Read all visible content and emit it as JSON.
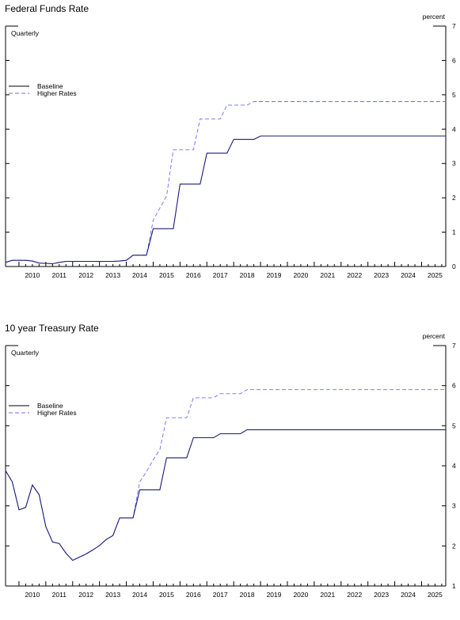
{
  "colors": {
    "baseline": "#000000",
    "higher_rates": "#6b6bff",
    "overlap": "#1a1a7a"
  },
  "chart_data": [
    {
      "type": "line",
      "title": "Federal Funds Rate",
      "frequency_label": "Quarterly",
      "ylabel": "percent",
      "ylim": [
        0,
        7
      ],
      "yticks": [
        0,
        1,
        2,
        3,
        4,
        5,
        6,
        7
      ],
      "xlim": [
        2009.5,
        2025.9
      ],
      "xtick_labels": [
        "2010",
        "2011",
        "2012",
        "2013",
        "2014",
        "2015",
        "2016",
        "2017",
        "2018",
        "2019",
        "2020",
        "2021",
        "2022",
        "2023",
        "2024",
        "2025"
      ],
      "legend": "top-left",
      "series": [
        {
          "name": "Baseline",
          "style": "solid",
          "x": [
            2009.5,
            2009.75,
            2010.0,
            2010.25,
            2010.5,
            2010.75,
            2011.0,
            2011.25,
            2011.5,
            2011.75,
            2012.0,
            2012.25,
            2012.5,
            2012.75,
            2013.0,
            2013.25,
            2013.5,
            2013.75,
            2014.0,
            2014.25,
            2014.5,
            2014.75,
            2015.0,
            2015.25,
            2015.5,
            2015.75,
            2016.0,
            2016.25,
            2016.5,
            2016.75,
            2017.0,
            2017.25,
            2017.5,
            2017.75,
            2018.0,
            2018.25,
            2018.5,
            2018.75,
            2019.0,
            2019.25,
            2025.9
          ],
          "values": [
            0.12,
            0.18,
            0.18,
            0.18,
            0.16,
            0.1,
            0.09,
            0.08,
            0.12,
            0.15,
            0.15,
            0.15,
            0.15,
            0.15,
            0.15,
            0.15,
            0.15,
            0.16,
            0.18,
            0.33,
            0.33,
            0.33,
            1.1,
            1.1,
            1.1,
            1.1,
            2.4,
            2.4,
            2.4,
            2.4,
            3.3,
            3.3,
            3.3,
            3.3,
            3.7,
            3.7,
            3.7,
            3.7,
            3.8,
            3.8,
            3.8
          ]
        },
        {
          "name": "Higher Rates",
          "style": "dashed",
          "x": [
            2009.5,
            2009.75,
            2010.0,
            2010.25,
            2010.5,
            2010.75,
            2011.0,
            2011.25,
            2011.5,
            2011.75,
            2012.0,
            2012.25,
            2012.5,
            2012.75,
            2013.0,
            2013.25,
            2013.5,
            2013.75,
            2014.0,
            2014.25,
            2014.5,
            2014.75,
            2015.0,
            2015.25,
            2015.5,
            2015.75,
            2016.0,
            2016.25,
            2016.5,
            2016.75,
            2017.0,
            2017.25,
            2017.5,
            2017.75,
            2018.0,
            2018.25,
            2018.5,
            2018.75,
            2019.0,
            2019.25,
            2025.9
          ],
          "values": [
            0.12,
            0.18,
            0.18,
            0.18,
            0.16,
            0.1,
            0.09,
            0.08,
            0.12,
            0.15,
            0.15,
            0.15,
            0.15,
            0.15,
            0.15,
            0.15,
            0.15,
            0.16,
            0.18,
            0.33,
            0.33,
            0.33,
            1.35,
            1.7,
            2.05,
            3.4,
            3.4,
            3.4,
            3.4,
            4.3,
            4.3,
            4.3,
            4.3,
            4.7,
            4.7,
            4.7,
            4.7,
            4.8,
            4.8,
            4.8,
            4.8
          ]
        }
      ]
    },
    {
      "type": "line",
      "title": "10 year Treasury Rate",
      "frequency_label": "Quarterly",
      "ylabel": "percent",
      "ylim": [
        1,
        7
      ],
      "yticks": [
        1,
        2,
        3,
        4,
        5,
        6,
        7
      ],
      "xlim": [
        2009.5,
        2025.9
      ],
      "xtick_labels": [
        "2010",
        "2011",
        "2012",
        "2013",
        "2014",
        "2015",
        "2016",
        "2017",
        "2018",
        "2019",
        "2020",
        "2021",
        "2022",
        "2023",
        "2024",
        "2025"
      ],
      "legend": "top-left",
      "series": [
        {
          "name": "Baseline",
          "style": "solid",
          "x": [
            2009.5,
            2009.75,
            2010.0,
            2010.25,
            2010.5,
            2010.75,
            2011.0,
            2011.25,
            2011.5,
            2011.75,
            2012.0,
            2012.25,
            2012.5,
            2012.75,
            2013.0,
            2013.25,
            2013.5,
            2013.75,
            2014.0,
            2014.25,
            2014.5,
            2014.75,
            2015.0,
            2015.25,
            2015.5,
            2015.75,
            2016.0,
            2016.25,
            2016.5,
            2016.75,
            2017.0,
            2017.25,
            2017.5,
            2017.75,
            2018.0,
            2018.25,
            2018.5,
            2018.75,
            2019.0,
            2019.25,
            2025.9
          ],
          "values": [
            3.88,
            3.6,
            2.9,
            2.96,
            3.52,
            3.28,
            2.48,
            2.1,
            2.06,
            1.82,
            1.64,
            1.72,
            1.8,
            1.9,
            2.01,
            2.16,
            2.26,
            2.7,
            2.7,
            2.7,
            3.4,
            3.4,
            3.4,
            3.4,
            4.2,
            4.2,
            4.2,
            4.2,
            4.7,
            4.7,
            4.7,
            4.7,
            4.8,
            4.8,
            4.8,
            4.8,
            4.9,
            4.9,
            4.9,
            4.9,
            4.9
          ]
        },
        {
          "name": "Higher Rates",
          "style": "dashed",
          "x": [
            2009.5,
            2009.75,
            2010.0,
            2010.25,
            2010.5,
            2010.75,
            2011.0,
            2011.25,
            2011.5,
            2011.75,
            2012.0,
            2012.25,
            2012.5,
            2012.75,
            2013.0,
            2013.25,
            2013.5,
            2013.75,
            2014.0,
            2014.25,
            2014.5,
            2014.75,
            2015.0,
            2015.25,
            2015.5,
            2015.75,
            2016.0,
            2016.25,
            2016.5,
            2016.75,
            2017.0,
            2017.25,
            2017.5,
            2017.75,
            2018.0,
            2018.25,
            2018.5,
            2018.75,
            2019.0,
            2019.25,
            2025.9
          ],
          "values": [
            3.88,
            3.6,
            2.9,
            2.96,
            3.52,
            3.28,
            2.48,
            2.1,
            2.06,
            1.82,
            1.64,
            1.72,
            1.8,
            1.9,
            2.01,
            2.16,
            2.26,
            2.7,
            2.7,
            2.7,
            3.6,
            3.85,
            4.15,
            4.4,
            5.2,
            5.2,
            5.2,
            5.2,
            5.7,
            5.7,
            5.7,
            5.7,
            5.8,
            5.8,
            5.8,
            5.8,
            5.9,
            5.9,
            5.9,
            5.9,
            5.9
          ]
        }
      ]
    }
  ]
}
